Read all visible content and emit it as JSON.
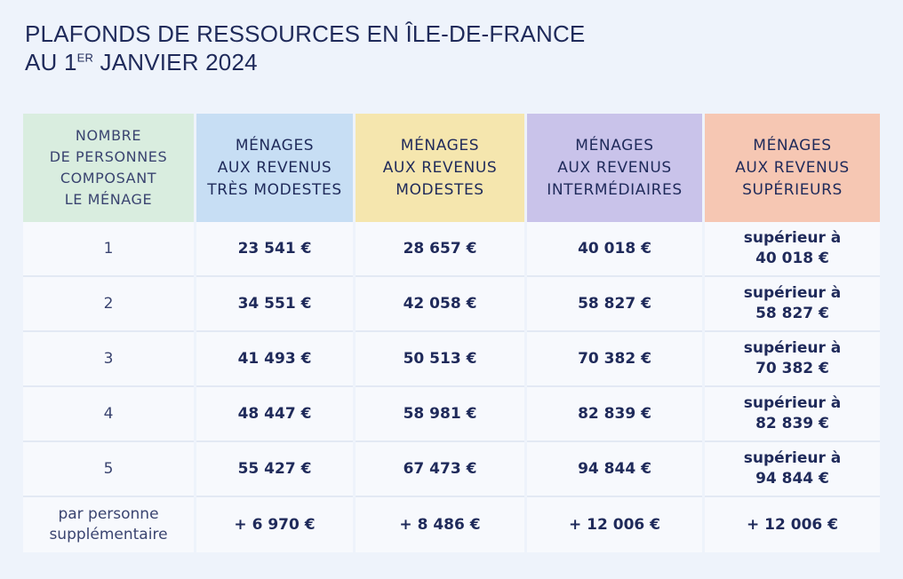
{
  "title": {
    "line1": "PLAFONDS DE RESSOURCES EN ÎLE-DE-FRANCE",
    "line2_prefix": "AU 1",
    "line2_sup": "ER",
    "line2_suffix": " JANVIER 2024"
  },
  "headers": [
    [
      "NOMBRE",
      "DE PERSONNES",
      "COMPOSANT",
      "LE MÉNAGE"
    ],
    [
      "MÉNAGES",
      "AUX REVENUS",
      "TRÈS MODESTES"
    ],
    [
      "MÉNAGES",
      "AUX REVENUS",
      "MODESTES"
    ],
    [
      "MÉNAGES",
      "AUX REVENUS",
      "INTERMÉDIAIRES"
    ],
    [
      "MÉNAGES",
      "AUX REVENUS",
      "SUPÉRIEURS"
    ]
  ],
  "rows": [
    {
      "persons": "1",
      "tres_modestes": "23 541 €",
      "modestes": "28 657 €",
      "intermediaires": "40 018 €",
      "superieurs": [
        "supérieur à",
        "40 018 €"
      ]
    },
    {
      "persons": "2",
      "tres_modestes": "34 551 €",
      "modestes": "42 058 €",
      "intermediaires": "58 827 €",
      "superieurs": [
        "supérieur à",
        "58 827 €"
      ]
    },
    {
      "persons": "3",
      "tres_modestes": "41 493 €",
      "modestes": "50 513 €",
      "intermediaires": "70 382 €",
      "superieurs": [
        "supérieur à",
        "70 382 €"
      ]
    },
    {
      "persons": "4",
      "tres_modestes": "48 447 €",
      "modestes": "58 981 €",
      "intermediaires": "82 839 €",
      "superieurs": [
        "supérieur à",
        "82 839 €"
      ]
    },
    {
      "persons": "5",
      "tres_modestes": "55 427 €",
      "modestes": "67 473 €",
      "intermediaires": "94 844 €",
      "superieurs": [
        "supérieur à",
        "94 844 €"
      ]
    },
    {
      "persons": [
        "par personne",
        "supplémentaire"
      ],
      "tres_modestes": "+ 6 970 €",
      "modestes": "+ 8 486 €",
      "intermediaires": "+ 12 006 €",
      "superieurs": [
        "+ 12 006 €"
      ]
    }
  ]
}
